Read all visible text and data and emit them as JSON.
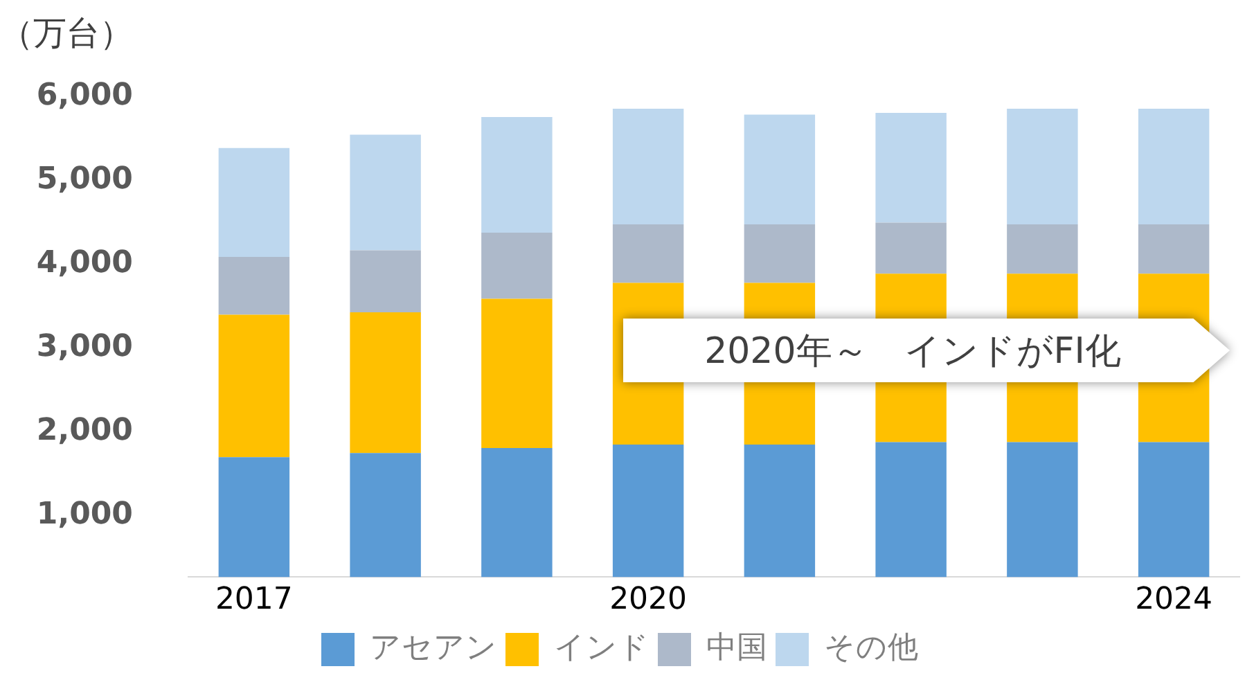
{
  "chart_data": {
    "type": "bar",
    "stacked": true,
    "ylabel": "（万台）",
    "categories": [
      "2017",
      null,
      null,
      "2020",
      null,
      null,
      null,
      "2024"
    ],
    "series": [
      {
        "name": "アセアン",
        "color": "#5b9bd5",
        "values": [
          1700,
          1750,
          1810,
          1850,
          1850,
          1880,
          1880,
          1880
        ]
      },
      {
        "name": "インド",
        "color": "#ffc000",
        "values": [
          1700,
          1680,
          1780,
          1930,
          1930,
          2010,
          2010,
          2010
        ]
      },
      {
        "name": "中国",
        "color": "#adb9ca",
        "values": [
          690,
          740,
          790,
          700,
          700,
          610,
          590,
          590
        ]
      },
      {
        "name": "その他",
        "color": "#bdd7ee",
        "values": [
          1300,
          1380,
          1380,
          1380,
          1310,
          1310,
          1380,
          1380
        ]
      }
    ],
    "ylim": [
      270,
      6000
    ],
    "yticks": [
      {
        "value": 1000,
        "label": "1,000"
      },
      {
        "value": 2000,
        "label": "2,000"
      },
      {
        "value": 3000,
        "label": "3,000"
      },
      {
        "value": 4000,
        "label": "4,000"
      },
      {
        "value": 5000,
        "label": "5,000"
      },
      {
        "value": 6000,
        "label": "6,000"
      }
    ],
    "grid": false,
    "legend": "bottom",
    "annotations": [
      "2020年～　インドがFI化"
    ]
  }
}
